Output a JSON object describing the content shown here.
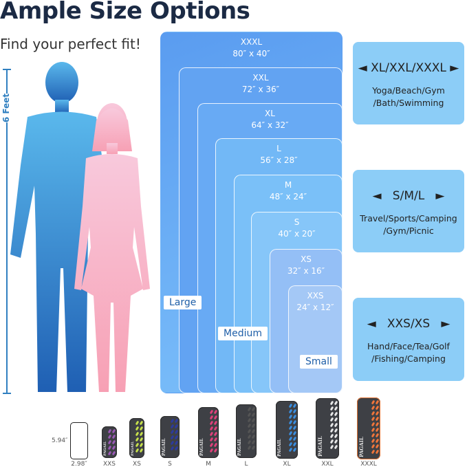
{
  "title": "Ample Size Options",
  "subtitle": "Find your perfect fit!",
  "height_label": "6 Feet",
  "sizes": [
    {
      "name": "XXXL",
      "dims": "80″ x 40″"
    },
    {
      "name": "XXL",
      "dims": "72″ x 36″"
    },
    {
      "name": "XL",
      "dims": "64″ x 32″"
    },
    {
      "name": "L",
      "dims": "56″ x 28″"
    },
    {
      "name": "M",
      "dims": "48″ x 24″"
    },
    {
      "name": "S",
      "dims": "40″ x 20″"
    },
    {
      "name": "XS",
      "dims": "32″ x 16″"
    },
    {
      "name": "XXS",
      "dims": "24″ x 12″"
    }
  ],
  "tags": {
    "large": "Large",
    "medium": "Medium",
    "small": "Small"
  },
  "groups": [
    {
      "label": "XL/XXL/XXXL",
      "uses": "Yoga/Beach/Gym /Bath/Swimming"
    },
    {
      "label": "S/M/L",
      "uses": "Travel/Sports/Camping /Gym/Picnic"
    },
    {
      "label": "XXS/XS",
      "uses": "Hand/Face/Tea/Golf /Fishing/Camping"
    }
  ],
  "phone": {
    "height": "5.94″",
    "width": "2.98″"
  },
  "packs": [
    {
      "label": "XXS",
      "color": "#9b59b6"
    },
    {
      "label": "XS",
      "color": "#c6e04a"
    },
    {
      "label": "S",
      "color": "#2c3a9e"
    },
    {
      "label": "M",
      "color": "#e0407a"
    },
    {
      "label": "L",
      "color": "#555555"
    },
    {
      "label": "XL",
      "color": "#3a8ee0"
    },
    {
      "label": "XXL",
      "color": "#e8e8e8"
    },
    {
      "label": "XXXL",
      "color": "#f0753a"
    }
  ],
  "brand": "PAGAIL"
}
